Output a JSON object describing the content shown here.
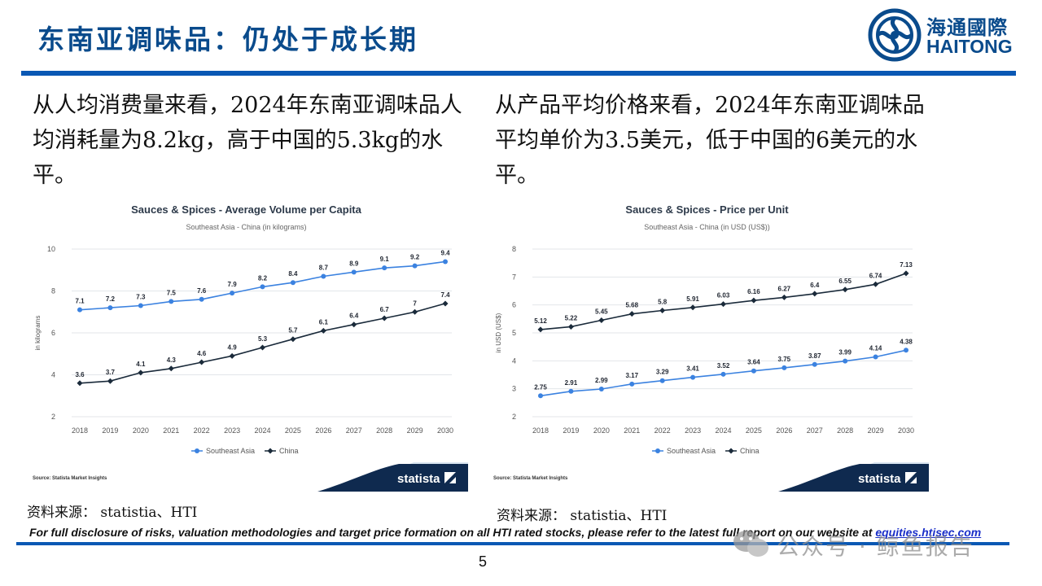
{
  "header": {
    "title": "东南亚调味品：仍处于成长期",
    "logo_cn": "海通國際",
    "logo_en": "HAITONG",
    "accent_color": "#0a4b8c"
  },
  "left_text": "从人均消费量来看，2024年东南亚调味品人均消耗量为8.2kg，高于中国的5.3kg的水平。",
  "right_text": "从产品平均价格来看，2024年东南亚调味品平均单价为3.5美元，低于中国的6美元的水平。",
  "chart_data": [
    {
      "type": "line",
      "title": "Sauces & Spices - Average Volume per Capita",
      "subtitle": "Southeast Asia - China (in kilograms)",
      "ylabel": "in kilograms",
      "xlabel": "",
      "x": [
        "2018",
        "2019",
        "2020",
        "2021",
        "2022",
        "2023",
        "2024",
        "2025",
        "2026",
        "2027",
        "2028",
        "2029",
        "2030"
      ],
      "ylim": [
        2,
        10
      ],
      "yticks": [
        2,
        4,
        6,
        8,
        10
      ],
      "grid": true,
      "legend": "bottom",
      "series": [
        {
          "name": "Southeast Asia",
          "color": "#3b82e0",
          "values": [
            7.1,
            7.2,
            7.3,
            7.5,
            7.6,
            7.9,
            8.2,
            8.4,
            8.7,
            8.9,
            9.1,
            9.2,
            9.4
          ]
        },
        {
          "name": "China",
          "color": "#1a2a3a",
          "values": [
            3.6,
            3.7,
            4.1,
            4.3,
            4.6,
            4.9,
            5.3,
            5.7,
            6.1,
            6.4,
            6.7,
            7,
            7.4
          ]
        }
      ],
      "footer_source": "Source: Statista Market Insights",
      "brand": "statista"
    },
    {
      "type": "line",
      "title": "Sauces & Spices - Price per Unit",
      "subtitle": "Southeast Asia - China (in USD (US$))",
      "ylabel": "in USD (US$)",
      "xlabel": "",
      "x": [
        "2018",
        "2019",
        "2020",
        "2021",
        "2022",
        "2023",
        "2024",
        "2025",
        "2026",
        "2027",
        "2028",
        "2029",
        "2030"
      ],
      "ylim": [
        2,
        8
      ],
      "yticks": [
        2,
        3,
        4,
        5,
        6,
        7,
        8
      ],
      "grid": true,
      "legend": "bottom",
      "series": [
        {
          "name": "Southeast Asia",
          "color": "#3b82e0",
          "values": [
            2.75,
            2.91,
            2.99,
            3.17,
            3.29,
            3.41,
            3.52,
            3.64,
            3.75,
            3.87,
            3.99,
            4.14,
            4.38
          ]
        },
        {
          "name": "China",
          "color": "#1a2a3a",
          "values": [
            5.12,
            5.22,
            5.45,
            5.68,
            5.8,
            5.91,
            6.03,
            6.16,
            6.27,
            6.4,
            6.55,
            6.74,
            7.13
          ]
        }
      ],
      "footer_source": "Source: Statista Market Insights",
      "brand": "statista"
    }
  ],
  "sources": {
    "left": "资料来源：  statistia、HTI",
    "right": "资料来源：  statistia、HTI"
  },
  "footer": {
    "disclaimer": "For full disclosure of risks, valuation methodologies and target price formation on all HTI rated stocks, please refer to the latest full report on our website at ",
    "link": "equities.htisec.com",
    "page_number": "5"
  },
  "watermark": {
    "text": "公众号 · 鲸鱼报告",
    "icon": "wechat-icon"
  }
}
